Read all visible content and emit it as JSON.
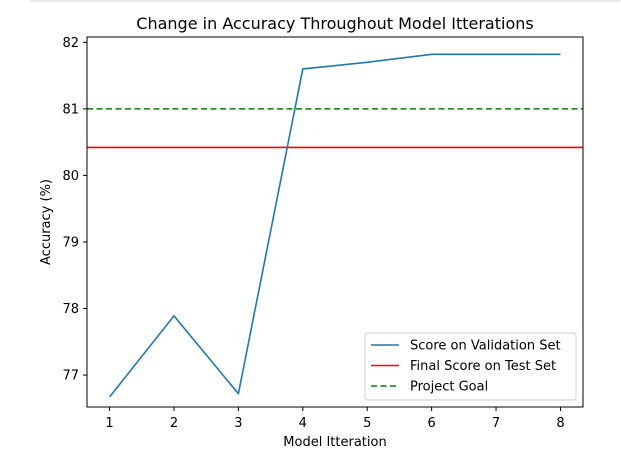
{
  "chart_data": {
    "type": "line",
    "title": "Change in Accuracy Throughout Model Itterations",
    "xlabel": "Model Itteration",
    "ylabel": "Accuracy (%)",
    "xlim": [
      0.65,
      8.35
    ],
    "ylim": [
      76.52,
      82.08
    ],
    "xticks": [
      1,
      2,
      3,
      4,
      5,
      6,
      7,
      8
    ],
    "yticks": [
      77,
      78,
      79,
      80,
      81,
      82
    ],
    "series": [
      {
        "name": "Score on Validation Set",
        "color": "#1f77b4",
        "style": "solid",
        "x": [
          1,
          2,
          3,
          4,
          5,
          6,
          7,
          8
        ],
        "y": [
          76.67,
          77.89,
          76.72,
          81.6,
          81.7,
          81.82,
          81.82,
          81.82
        ]
      }
    ],
    "hlines": [
      {
        "name": "Final Score on Test Set",
        "y": 80.42,
        "color": "#ff0000",
        "style": "solid"
      },
      {
        "name": "Project Goal",
        "y": 81.0,
        "color": "#008000",
        "style": "dashed"
      }
    ],
    "legend": {
      "placement": "lower right",
      "entries": [
        "Score on Validation Set",
        "Final Score on Test Set",
        "Project Goal"
      ]
    },
    "grid": false
  }
}
